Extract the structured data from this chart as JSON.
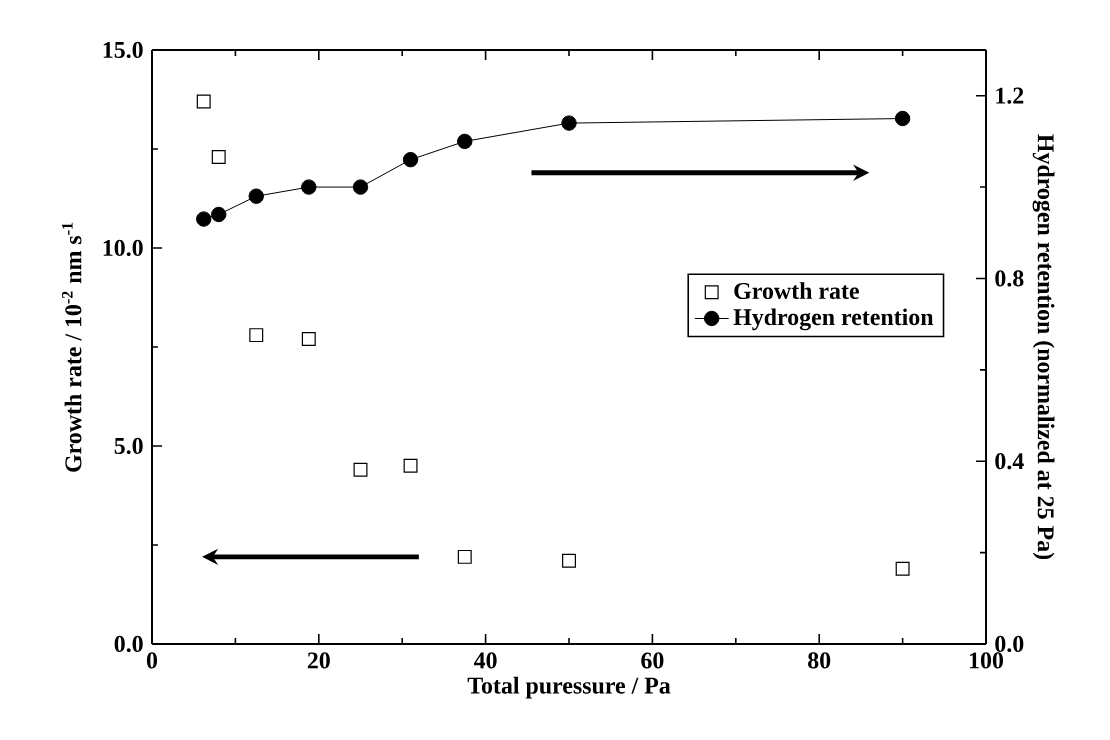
{
  "chart_data": {
    "type": "scatter",
    "xlabel": "Total puressure / Pa",
    "ylabel": "Growth rate / 10$^{-2}$ nm s$^{-1}$",
    "y2label": "Hydrogen retention (normalized at 25 Pa)",
    "x": [
      6.2,
      8,
      12.5,
      18.8,
      25,
      31,
      37.5,
      50,
      90
    ],
    "series": [
      {
        "name": "Growth rate",
        "marker": "square",
        "color": "#000000",
        "values": [
          13.7,
          12.3,
          7.8,
          7.7,
          4.4,
          4.5,
          2.2,
          2.1,
          1.9
        ]
      },
      {
        "name": "Hydrogen retention",
        "type": "line",
        "marker": "circle",
        "line_style": "solid",
        "color": "#000000",
        "axis": "y2",
        "values": [
          0.93,
          0.94,
          0.98,
          1.0,
          1.0,
          1.06,
          1.1,
          1.14,
          1.15
        ]
      }
    ],
    "xlim": [
      0,
      100
    ],
    "xticks": [
      0,
      20,
      40,
      60,
      80,
      100
    ],
    "ylim": [
      0,
      15
    ],
    "yticks": [
      {
        "value": 0,
        "label": "0.0"
      },
      {
        "value": 5,
        "label": "5.0"
      },
      {
        "value": 10,
        "label": "10.0"
      },
      {
        "value": 15,
        "label": "15.0"
      }
    ],
    "y2lim": [
      0,
      1.3
    ],
    "y2ticks": [
      {
        "value": 0,
        "label": "0.0"
      },
      {
        "value": 0.4,
        "label": "0.4"
      },
      {
        "value": 0.8,
        "label": "0.8"
      },
      {
        "value": 1.2,
        "label": "1.2"
      }
    ],
    "legend": "right",
    "grid": false
  }
}
